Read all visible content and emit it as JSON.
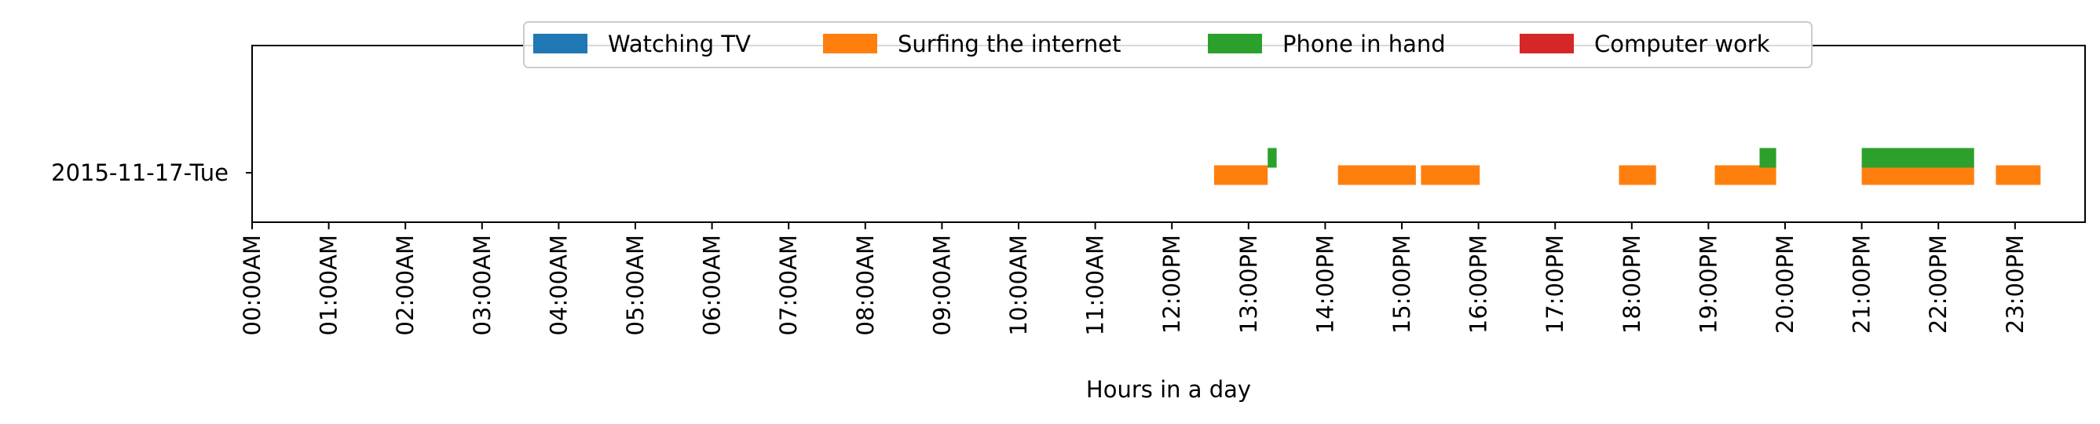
{
  "chart_data": {
    "type": "timeline",
    "xlabel": "Hours in a day",
    "xlim": [
      "00:00",
      "24:00"
    ],
    "x_tick_labels": [
      "00:00AM",
      "01:00AM",
      "02:00AM",
      "03:00AM",
      "04:00AM",
      "05:00AM",
      "06:00AM",
      "07:00AM",
      "08:00AM",
      "09:00AM",
      "10:00AM",
      "11:00AM",
      "12:00PM",
      "13:00PM",
      "14:00PM",
      "15:00PM",
      "16:00PM",
      "17:00PM",
      "18:00PM",
      "19:00PM",
      "20:00PM",
      "21:00PM",
      "22:00PM",
      "23:00PM"
    ],
    "categories": [
      "2015-11-17-Tue"
    ],
    "legend": {
      "placement": "upper center",
      "entries": [
        {
          "name": "Watching TV",
          "color": "#1f77b4"
        },
        {
          "name": "Surfing the internet",
          "color": "#ff7f0e"
        },
        {
          "name": "Phone in hand",
          "color": "#2ca02c"
        },
        {
          "name": "Computer work",
          "color": "#d62728"
        }
      ]
    },
    "series": [
      {
        "name": "Surfing the internet",
        "color": "#ff7f0e",
        "row": "2015-11-17-Tue",
        "intervals": [
          {
            "start": "12:33",
            "end": "13:15"
          },
          {
            "start": "14:10",
            "end": "15:11"
          },
          {
            "start": "15:15",
            "end": "16:01"
          },
          {
            "start": "17:50",
            "end": "18:19"
          },
          {
            "start": "19:05",
            "end": "19:53"
          },
          {
            "start": "21:00",
            "end": "22:28"
          },
          {
            "start": "22:45",
            "end": "23:20"
          }
        ]
      },
      {
        "name": "Phone in hand",
        "color": "#2ca02c",
        "row": "2015-11-17-Tue",
        "intervals": [
          {
            "start": "13:15",
            "end": "13:22"
          },
          {
            "start": "19:40",
            "end": "19:53"
          },
          {
            "start": "21:00",
            "end": "22:28"
          }
        ]
      }
    ]
  }
}
